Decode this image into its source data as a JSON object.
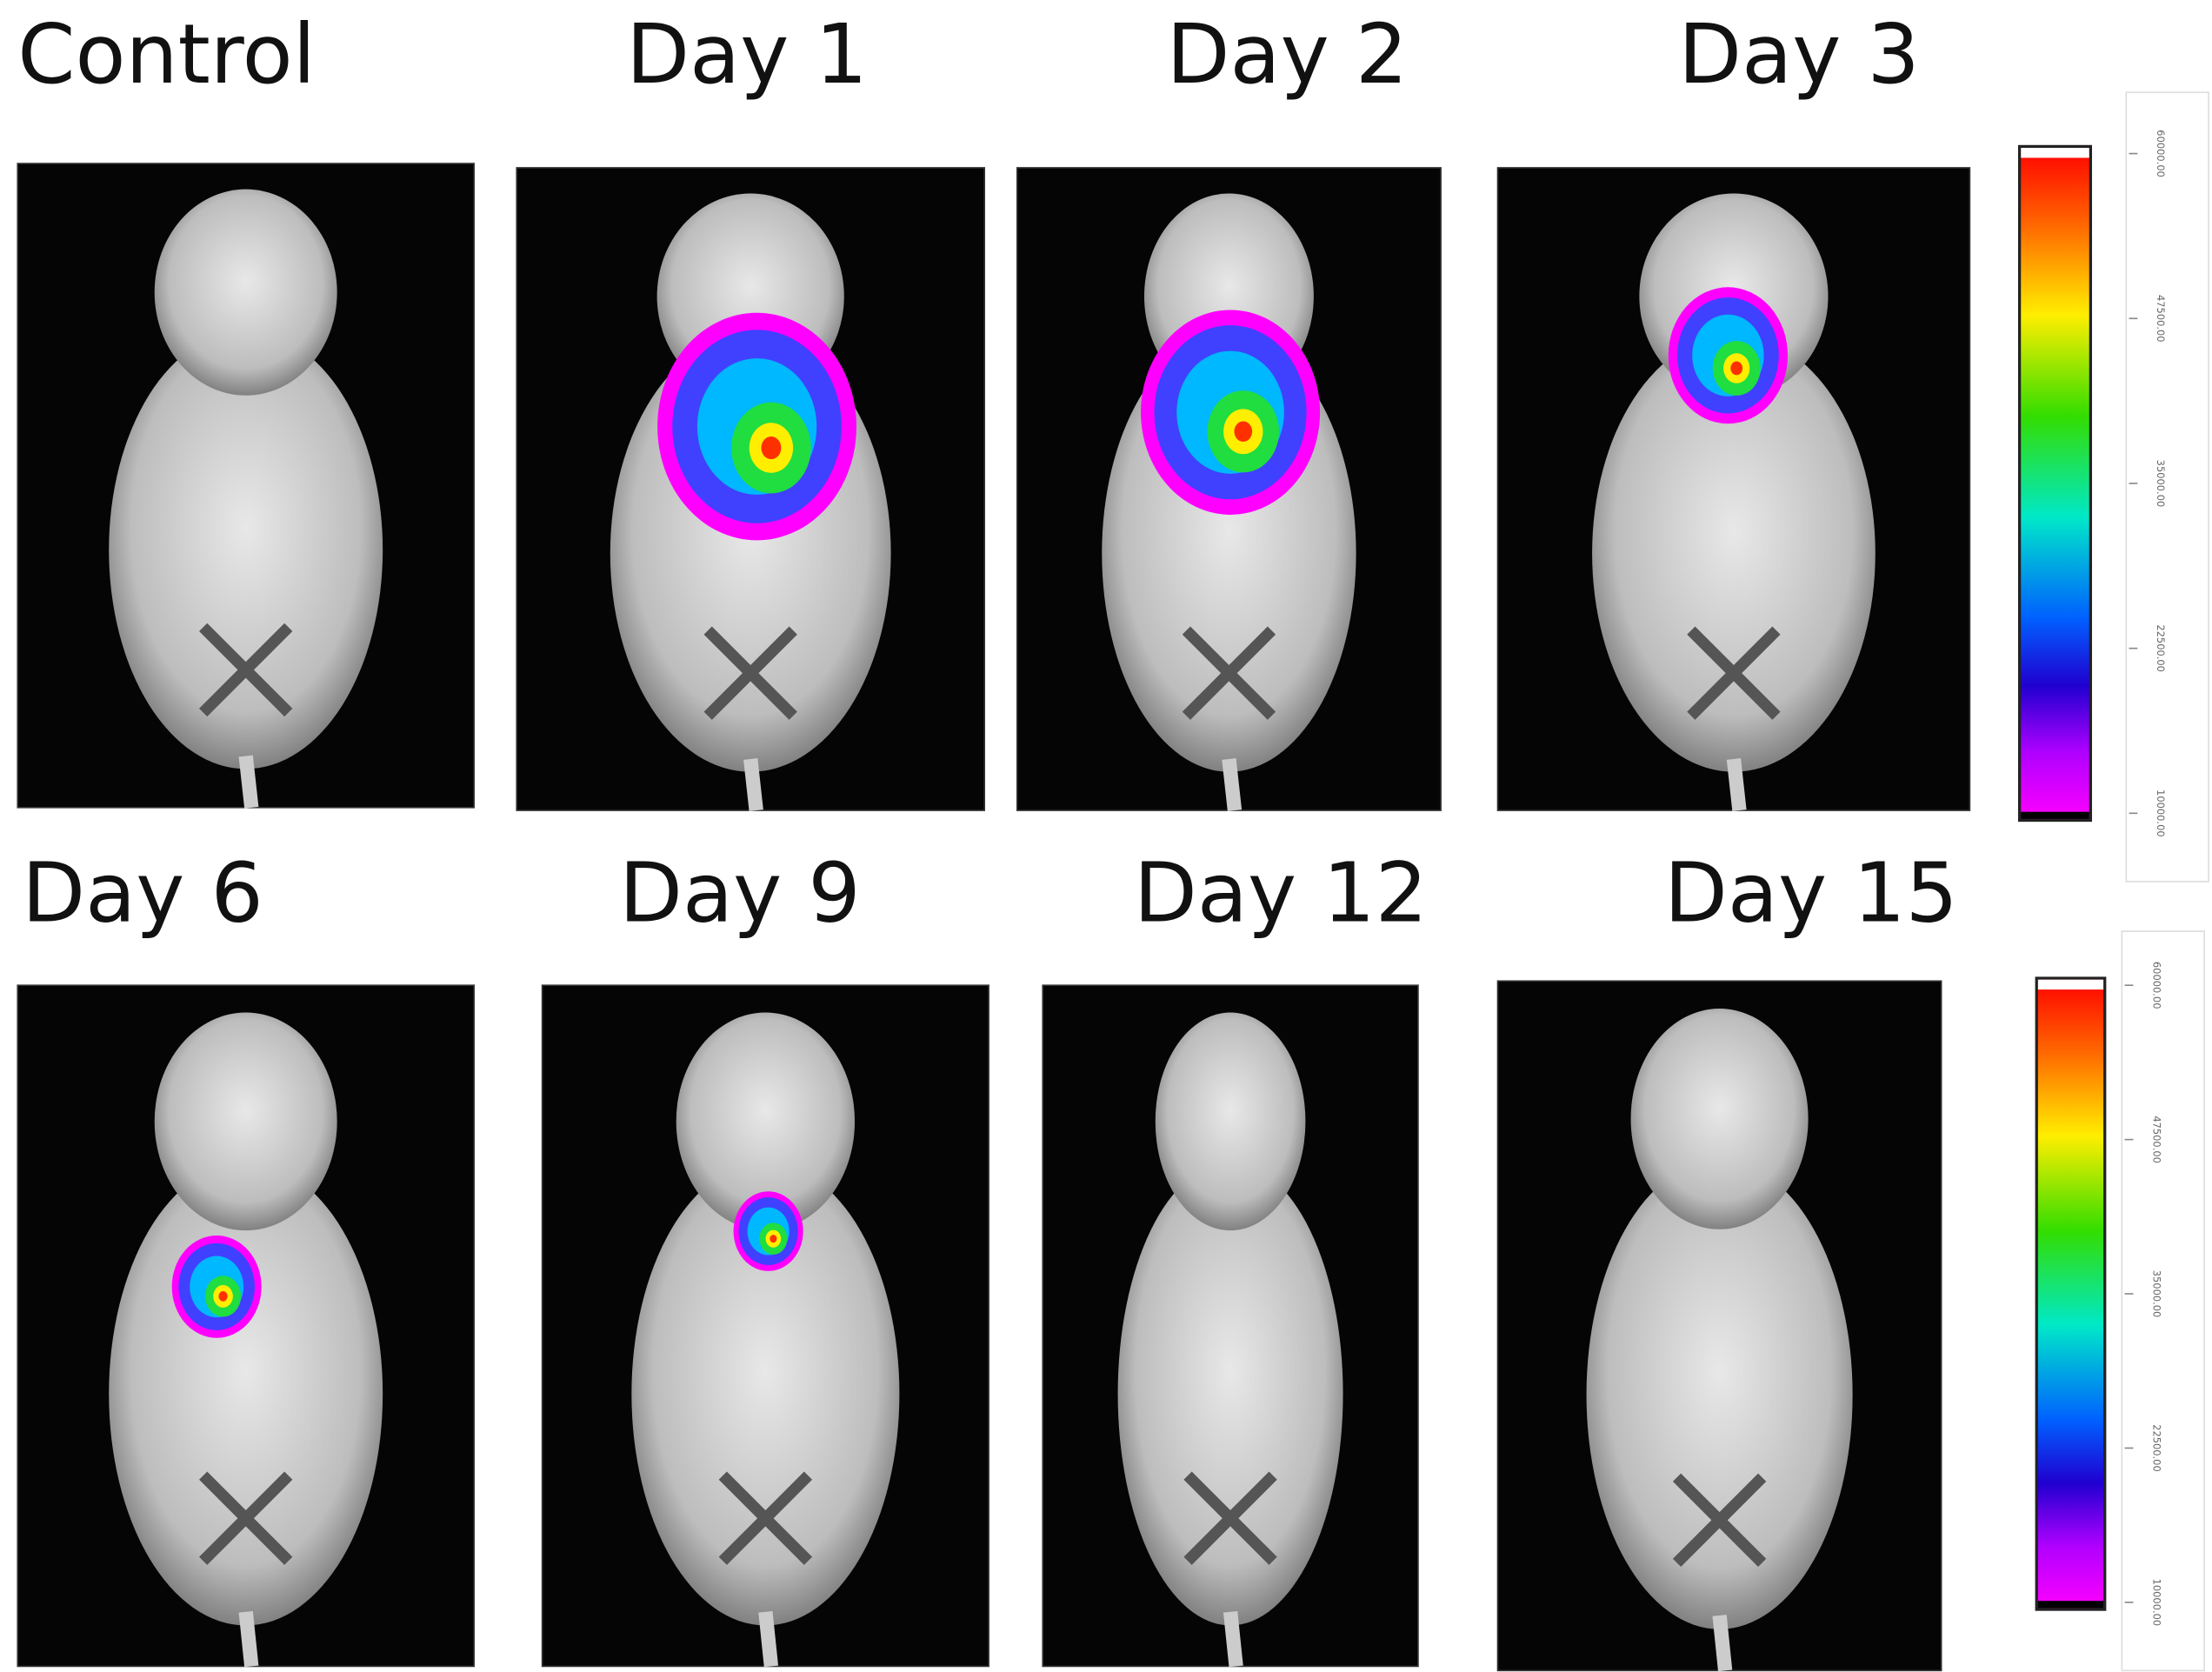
{
  "panels": [
    {
      "label": "Control"
    },
    {
      "label": "Day 1"
    },
    {
      "label": "Day 2"
    },
    {
      "label": "Day 3"
    },
    {
      "label": "Day 6"
    },
    {
      "label": "Day 9"
    },
    {
      "label": "Day 12"
    },
    {
      "label": "Day 15"
    }
  ],
  "colorbars": [
    {
      "ticks": [
        "60000.00",
        "47500.00",
        "35000.00",
        "22500.00",
        "10000.00"
      ]
    },
    {
      "ticks": [
        "60000.00",
        "47500.00",
        "35000.00",
        "22500.00",
        "10000.00"
      ]
    }
  ]
}
